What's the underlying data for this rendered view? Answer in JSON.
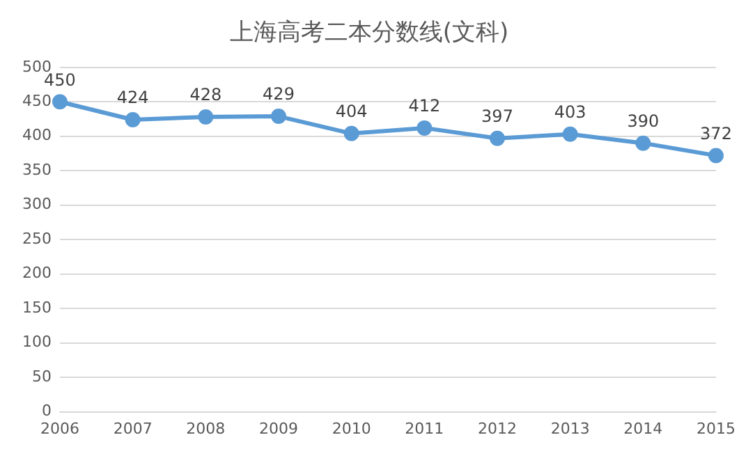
{
  "chart_data": {
    "type": "line",
    "title": "上海高考二本分数线(文科)",
    "categories": [
      "2006",
      "2007",
      "2008",
      "2009",
      "2010",
      "2011",
      "2012",
      "2013",
      "2014",
      "2015"
    ],
    "series": [
      {
        "color": "#5b9bd5",
        "values": [
          450,
          424,
          428,
          429,
          404,
          412,
          397,
          403,
          390,
          372
        ]
      }
    ],
    "ylim": [
      0,
      500
    ],
    "yticks": [
      0,
      50,
      100,
      150,
      200,
      250,
      300,
      350,
      400,
      450,
      500
    ],
    "grid": "y",
    "legend": false,
    "marker": "circle",
    "line_style": "solid",
    "data_labels": true
  }
}
